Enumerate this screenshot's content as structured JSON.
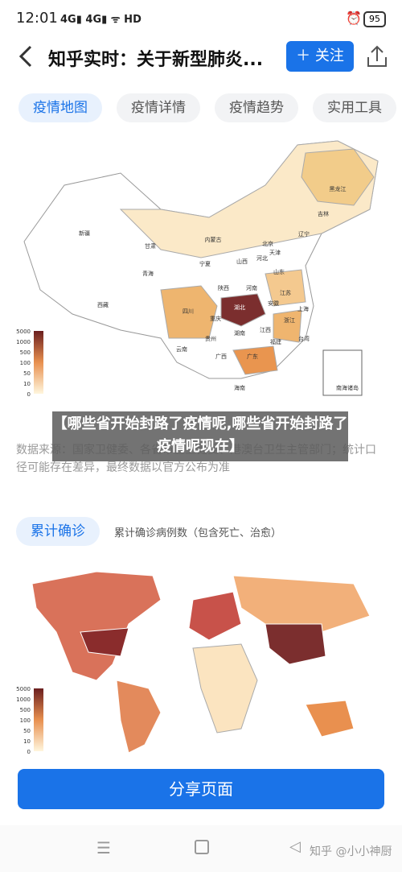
{
  "status_bar": {
    "time": "12:01",
    "battery": "95"
  },
  "header": {
    "title": "知乎实时：关于新型肺炎...",
    "follow_button": "关注"
  },
  "tabs": [
    "疫情地图",
    "疫情详情",
    "疫情趋势",
    "实用工具"
  ],
  "china_map": {
    "provinces": [
      "新疆",
      "西藏",
      "青海",
      "甘肃",
      "内蒙古",
      "黑龙江",
      "吉林",
      "辽宁",
      "北京",
      "天津",
      "河北",
      "山西",
      "山东",
      "宁夏",
      "陕西",
      "河南",
      "江苏",
      "安徽",
      "上海",
      "湖北",
      "四川",
      "重庆",
      "浙江",
      "江西",
      "湖南",
      "贵州",
      "福建",
      "云南",
      "广西",
      "广东",
      "台湾",
      "海南",
      "南海诸岛"
    ],
    "legend_ticks": [
      5000,
      1000,
      500,
      100,
      50,
      10,
      0
    ]
  },
  "banner": "【哪些省开始封路了疫情呢,哪些省开始封路了疫情呢现在】",
  "source_note": "数据来源：国家卫健委、各省市区卫健委、港澳台卫生主管部门；统计口径可能存在差异，最终数据以官方公布为准",
  "section": {
    "tag": "累计确诊",
    "description": "累计确诊病例数（包含死亡、治愈）"
  },
  "world_map": {
    "legend_ticks": [
      5000,
      1000,
      500,
      100,
      50,
      10,
      0
    ]
  },
  "share_button": "分享页面",
  "nav": {
    "watermark": "知乎 @小小神厨"
  }
}
